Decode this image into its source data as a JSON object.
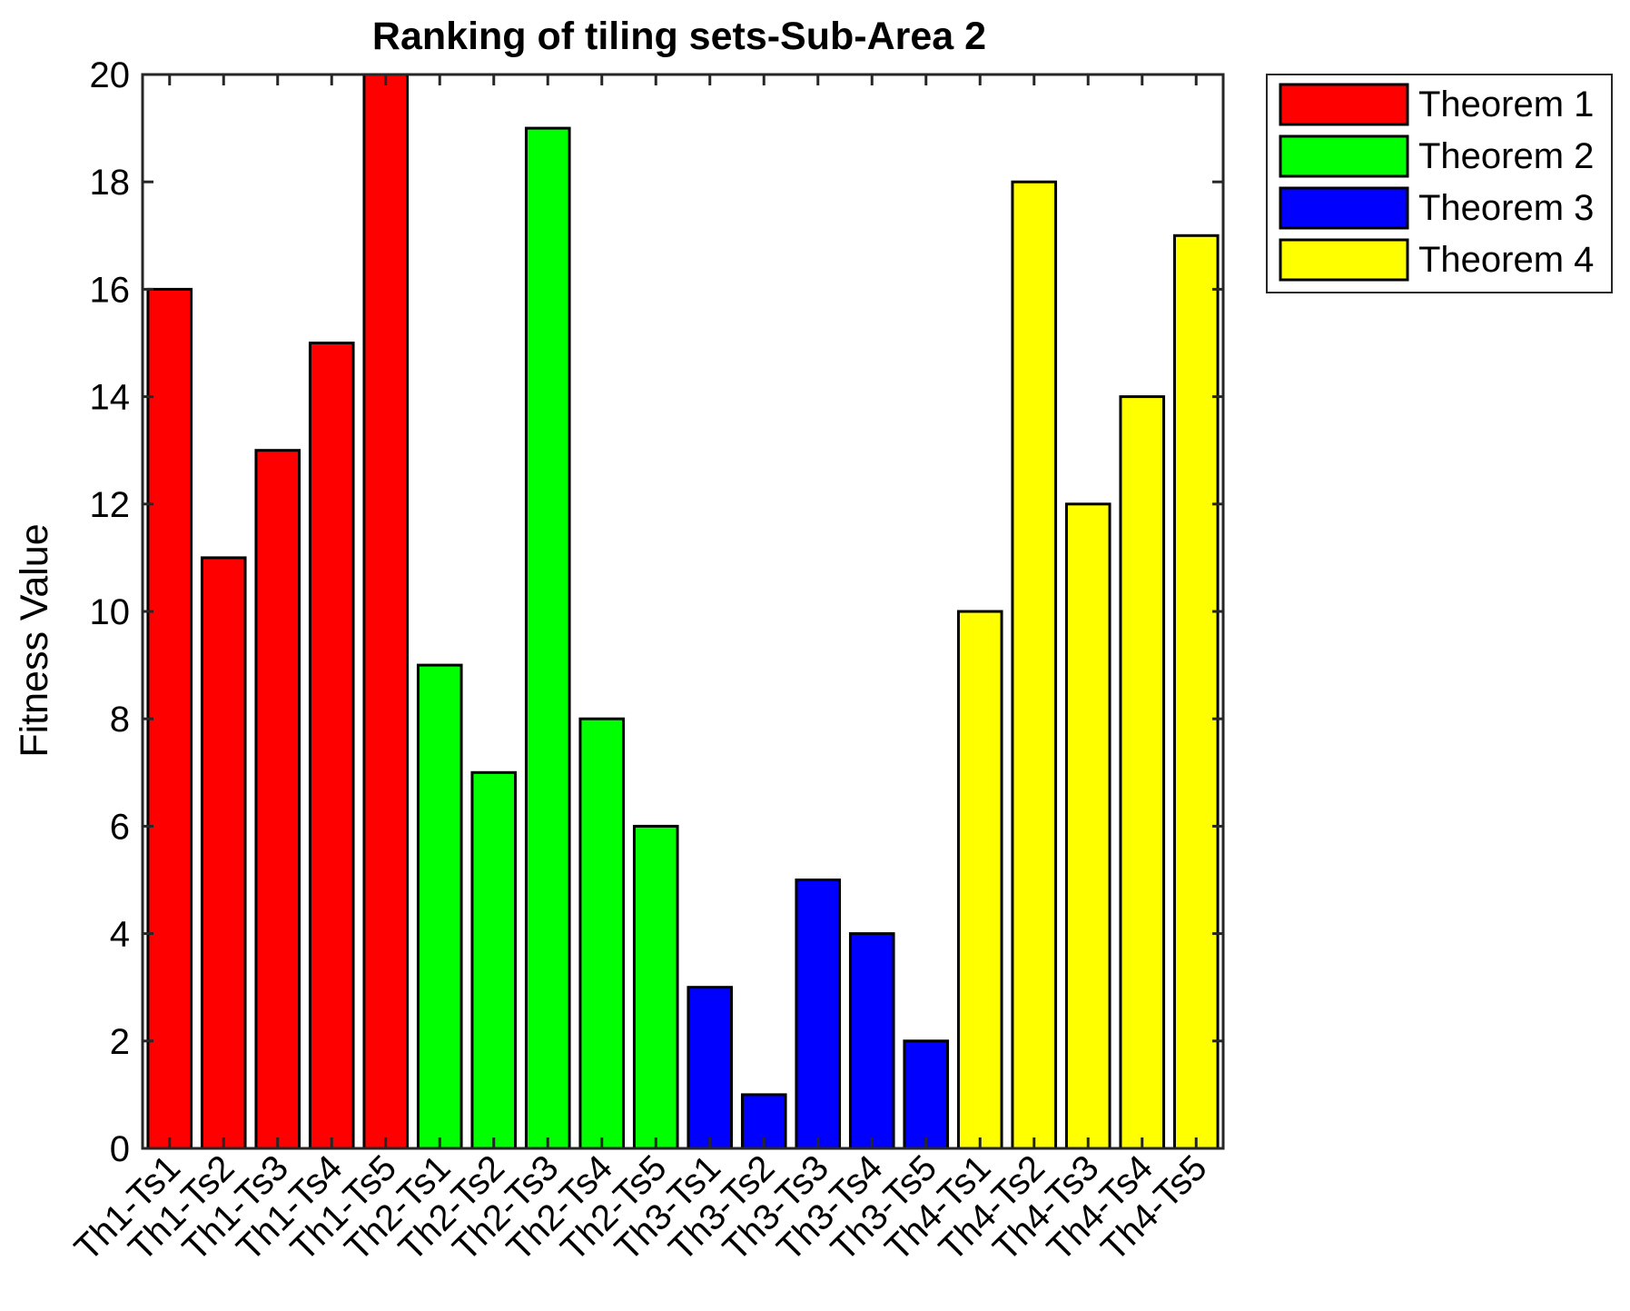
{
  "chart_data": {
    "type": "bar",
    "title": "Ranking of tiling sets-Sub-Area 2",
    "xlabel": "",
    "ylabel": "Fitness Value",
    "ylim": [
      0,
      20
    ],
    "yticks": [
      0,
      2,
      4,
      6,
      8,
      10,
      12,
      14,
      16,
      18,
      20
    ],
    "grid": false,
    "legend_position": "outside-top-right",
    "categories": [
      "Th1-Ts1",
      "Th1-Ts2",
      "Th1-Ts3",
      "Th1-Ts4",
      "Th1-Ts5",
      "Th2-Ts1",
      "Th2-Ts2",
      "Th2-Ts3",
      "Th2-Ts4",
      "Th2-Ts5",
      "Th3-Ts1",
      "Th3-Ts2",
      "Th3-Ts3",
      "Th3-Ts4",
      "Th3-Ts5",
      "Th4-Ts1",
      "Th4-Ts2",
      "Th4-Ts3",
      "Th4-Ts4",
      "Th4-Ts5"
    ],
    "values": [
      16,
      11,
      13,
      15,
      20,
      9,
      7,
      19,
      8,
      6,
      3,
      1,
      5,
      4,
      2,
      10,
      18,
      12,
      14,
      17
    ],
    "groups": [
      0,
      0,
      0,
      0,
      0,
      1,
      1,
      1,
      1,
      1,
      2,
      2,
      2,
      2,
      2,
      3,
      3,
      3,
      3,
      3
    ],
    "series": [
      {
        "name": "Theorem 1",
        "color": "#ff0000"
      },
      {
        "name": "Theorem 2",
        "color": "#00ff00"
      },
      {
        "name": "Theorem 3",
        "color": "#0000ff"
      },
      {
        "name": "Theorem 4",
        "color": "#ffff00"
      }
    ]
  }
}
